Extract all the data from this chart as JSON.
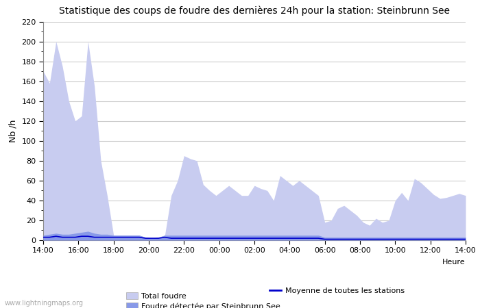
{
  "title": "Statistique des coups de foudre des dernières 24h pour la station: Steinbrunn See",
  "ylabel": "Nb /h",
  "xlabel": "Heure",
  "watermark": "www.lightningmaps.org",
  "xlim_labels": [
    "14:00",
    "16:00",
    "18:00",
    "20:00",
    "22:00",
    "00:00",
    "02:00",
    "04:00",
    "06:00",
    "08:00",
    "10:00",
    "12:00",
    "14:00"
  ],
  "ylim": [
    0,
    220
  ],
  "yticks_major": [
    0,
    20,
    40,
    60,
    80,
    100,
    120,
    140,
    160,
    180,
    200,
    220
  ],
  "color_total": "#c8ccf0",
  "color_detected": "#8899e8",
  "color_moyenne": "#0000cc",
  "bg_color": "#ffffff",
  "grid_color": "#cccccc",
  "legend_items": [
    "Total foudre",
    "Moyenne de toutes les stations",
    "Foudre détectée par Steinbrunn See"
  ],
  "total_foudre": [
    170,
    158,
    200,
    175,
    140,
    120,
    125,
    200,
    155,
    80,
    45,
    5,
    5,
    5,
    5,
    5,
    3,
    2,
    3,
    5,
    45,
    60,
    85,
    82,
    80,
    56,
    50,
    45,
    50,
    55,
    50,
    45,
    45,
    55,
    52,
    50,
    40,
    65,
    60,
    55,
    60,
    55,
    50,
    45,
    18,
    20,
    32,
    35,
    30,
    25,
    18,
    15,
    22,
    18,
    20,
    40,
    48,
    40,
    62,
    58,
    52,
    46,
    42,
    43,
    45,
    47,
    45
  ],
  "detected_foudre": [
    5,
    6,
    7,
    6,
    6,
    7,
    8,
    9,
    7,
    6,
    6,
    5,
    5,
    5,
    5,
    5,
    3,
    2,
    3,
    5,
    5,
    5,
    5,
    5,
    5,
    5,
    5,
    5,
    5,
    5,
    5,
    5,
    5,
    5,
    5,
    5,
    5,
    5,
    5,
    5,
    5,
    5,
    5,
    5,
    3,
    3,
    3,
    3,
    3,
    3,
    3,
    3,
    3,
    3,
    3,
    3,
    3,
    3,
    3,
    3,
    3,
    3,
    3,
    3,
    3,
    3,
    3
  ],
  "moyenne": [
    3,
    3,
    4,
    3,
    3,
    3,
    4,
    4,
    3,
    3,
    3,
    3,
    3,
    3,
    3,
    3,
    2,
    2,
    2,
    3,
    2,
    2,
    2,
    2,
    2,
    2,
    2,
    2,
    2,
    2,
    2,
    2,
    2,
    2,
    2,
    2,
    2,
    2,
    2,
    2,
    2,
    2,
    2,
    2,
    1,
    1,
    1,
    1,
    1,
    1,
    1,
    1,
    1,
    1,
    1,
    1,
    1,
    1,
    1,
    1,
    1,
    1,
    1,
    1,
    1,
    1,
    1
  ],
  "n_points": 67,
  "title_fontsize": 10,
  "axis_fontsize": 8,
  "ylabel_fontsize": 9
}
